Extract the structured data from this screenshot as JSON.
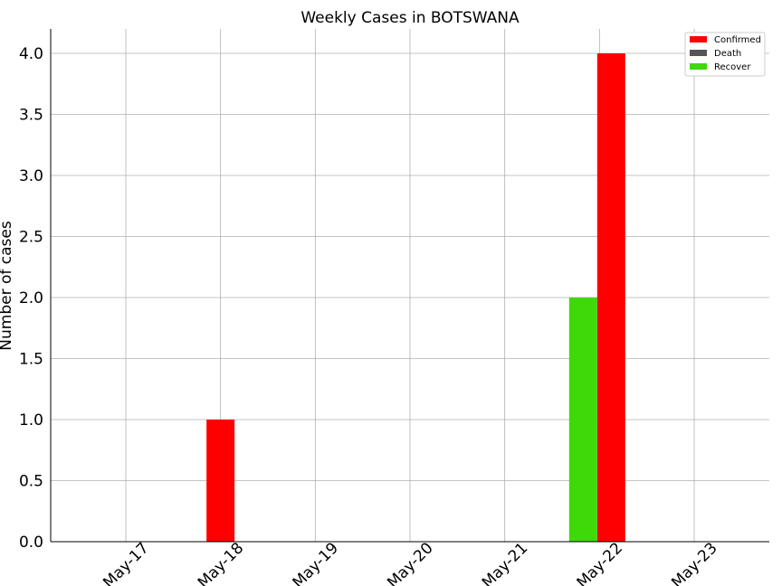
{
  "chart_data": {
    "type": "bar",
    "title": "Weekly Cases in BOTSWANA",
    "xlabel": "",
    "ylabel": "Number of cases",
    "categories": [
      "May-17",
      "May-18",
      "May-19",
      "May-20",
      "May-21",
      "May-22",
      "May-23"
    ],
    "series": [
      {
        "name": "Confirmed",
        "color": "#ff0000",
        "values": [
          0,
          1,
          0,
          0,
          0,
          4,
          0
        ]
      },
      {
        "name": "Death",
        "color": "#555555",
        "values": [
          0,
          0,
          0,
          0,
          0,
          0,
          0
        ]
      },
      {
        "name": "Recover",
        "color": "#3fd90a",
        "values": [
          0,
          0,
          0,
          0,
          0,
          2,
          0
        ]
      }
    ],
    "ylim": [
      0,
      4.2
    ],
    "yticks": [
      "0.0",
      "0.5",
      "1.0",
      "1.5",
      "2.0",
      "2.5",
      "3.0",
      "3.5",
      "4.0"
    ],
    "grid": true,
    "legend": "top-right"
  }
}
